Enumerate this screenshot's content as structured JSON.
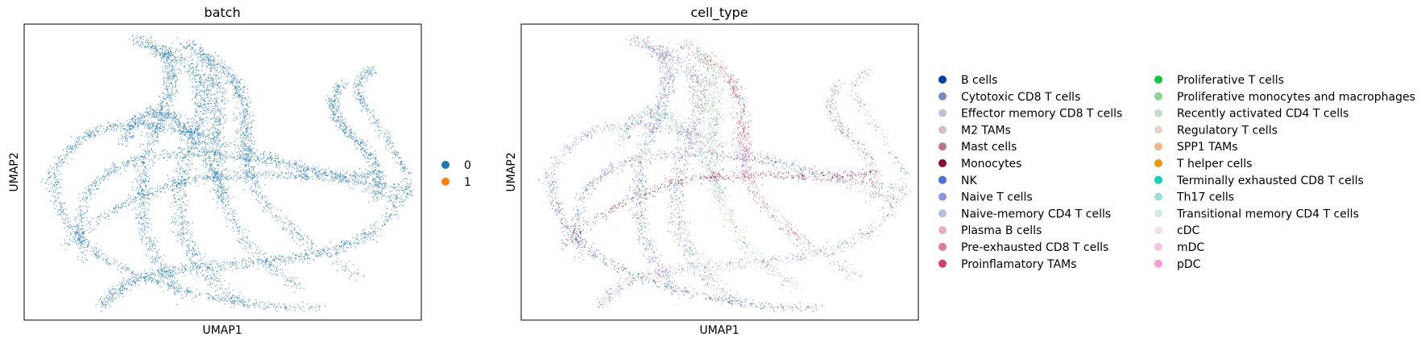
{
  "chart_data": [
    {
      "type": "scatter",
      "title": "batch",
      "xlabel": "UMAP1",
      "ylabel": "UMAP2",
      "grid": false,
      "legend_position": "right",
      "legend": [
        {
          "label": "0",
          "color": "#1f77b4"
        },
        {
          "label": "1",
          "color": "#ff7f0e"
        }
      ]
    },
    {
      "type": "scatter",
      "title": "cell_type",
      "xlabel": "UMAP1",
      "ylabel": "UMAP2",
      "grid": false,
      "legend_position": "right",
      "legend": [
        {
          "label": "B cells",
          "color": "#023fa5"
        },
        {
          "label": "Cytotoxic CD8 T cells",
          "color": "#7d87b9"
        },
        {
          "label": "Effector memory CD8 T cells",
          "color": "#bec1d4"
        },
        {
          "label": "M2 TAMs",
          "color": "#d6bcc0"
        },
        {
          "label": "Mast cells",
          "color": "#bb7784"
        },
        {
          "label": "Monocytes",
          "color": "#8e063b"
        },
        {
          "label": "NK",
          "color": "#4a6fe3"
        },
        {
          "label": "Naive T cells",
          "color": "#8595e1"
        },
        {
          "label": "Naive-memory CD4 T cells",
          "color": "#b5bbe3"
        },
        {
          "label": "Plasma B cells",
          "color": "#e6afb9"
        },
        {
          "label": "Pre-exhausted CD8 T cells",
          "color": "#e07b91"
        },
        {
          "label": "Proinflamatory TAMs",
          "color": "#d33f6a"
        },
        {
          "label": "Proliferative T cells",
          "color": "#11c638"
        },
        {
          "label": "Proliferative monocytes and macrophages",
          "color": "#8dd593"
        },
        {
          "label": "Recently activated CD4 T cells",
          "color": "#c6dec7"
        },
        {
          "label": "Regulatory T cells",
          "color": "#ead3c6"
        },
        {
          "label": "SPP1 TAMs",
          "color": "#f0b98d"
        },
        {
          "label": "T helper cells",
          "color": "#ef9708"
        },
        {
          "label": "Terminally exhausted CD8 T cells",
          "color": "#0fcfc0"
        },
        {
          "label": "Th17 cells",
          "color": "#9cded6"
        },
        {
          "label": "Transitional memory CD4 T cells",
          "color": "#d5eae7"
        },
        {
          "label": "cDC",
          "color": "#f3e1eb"
        },
        {
          "label": "mDC",
          "color": "#f6c4e1"
        },
        {
          "label": "pDC",
          "color": "#f79cd4"
        }
      ]
    }
  ]
}
